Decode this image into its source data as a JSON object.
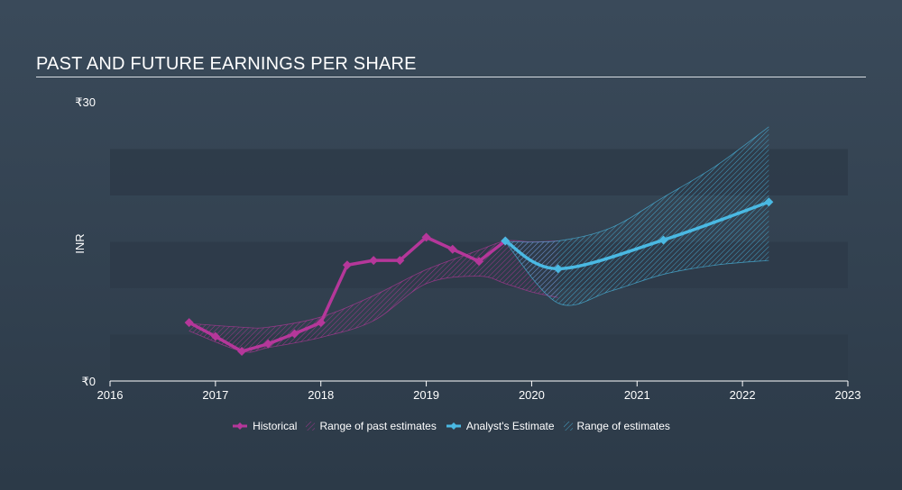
{
  "title": "PAST AND FUTURE EARNINGS PER SHARE",
  "colors": {
    "historical": "#b5379a",
    "estimate": "#4ab9e3",
    "band_dark": "#2d3b49",
    "band_light": "#34444f"
  },
  "chart_data": {
    "type": "line",
    "ylabel": "INR",
    "y_tick_labels": [
      "₹30",
      "₹0"
    ],
    "ylim": [
      0,
      30
    ],
    "xlim": [
      2016,
      2023
    ],
    "x_ticks": [
      "2016",
      "2017",
      "2018",
      "2019",
      "2020",
      "2021",
      "2022",
      "2023"
    ],
    "legend": [
      {
        "label": "Historical",
        "type": "line",
        "color": "#b5379a"
      },
      {
        "label": "Range of past estimates",
        "type": "hatch",
        "color": "#b5379a"
      },
      {
        "label": "Analyst's Estimate",
        "type": "line",
        "color": "#4ab9e3"
      },
      {
        "label": "Range of estimates",
        "type": "hatch",
        "color": "#4ab9e3"
      }
    ],
    "series": [
      {
        "name": "Historical",
        "x": [
          2016.75,
          2017.0,
          2017.25,
          2017.5,
          2017.75,
          2018.0,
          2018.25,
          2018.5,
          2018.75,
          2019.0,
          2019.25,
          2019.5,
          2019.75
        ],
        "y": [
          6.3,
          4.8,
          3.2,
          4.0,
          5.1,
          6.3,
          12.5,
          13.0,
          13.0,
          15.5,
          14.2,
          12.9,
          15.1
        ]
      },
      {
        "name": "Analyst's Estimate",
        "x": [
          2019.75,
          2020.25,
          2021.25,
          2022.25
        ],
        "y": [
          15.1,
          12.1,
          15.2,
          19.3
        ]
      }
    ],
    "past_range": {
      "x": [
        2016.75,
        2017.25,
        2017.5,
        2018.0,
        2018.5,
        2019.0,
        2019.5,
        2019.75,
        2020.0,
        2020.25
      ],
      "upper": [
        6.2,
        5.8,
        5.8,
        6.9,
        9.2,
        12.0,
        14.1,
        15.1,
        15.0,
        15.1
      ],
      "lower": [
        5.4,
        3.2,
        3.6,
        4.7,
        6.5,
        10.5,
        11.3,
        10.5,
        9.6,
        9.0
      ]
    },
    "future_range": {
      "x": [
        2019.75,
        2020.25,
        2020.75,
        2021.25,
        2021.75,
        2022.25
      ],
      "upper": [
        15.0,
        15.1,
        16.5,
        19.8,
        23.2,
        27.4
      ],
      "lower": [
        15.0,
        8.4,
        9.7,
        11.5,
        12.5,
        13.0
      ]
    }
  }
}
